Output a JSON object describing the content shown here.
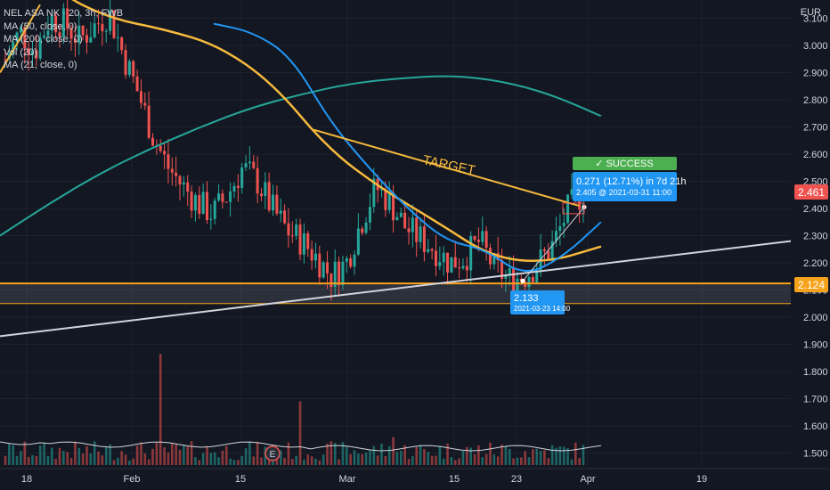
{
  "legend": {
    "symbol_line": "NEL ASA NK · 20, 3h, FWB",
    "ma50": "MA (50, close, 0)",
    "ma200": "MA (200, close, 0)",
    "vol": "Vol (20)",
    "ma21": "MA (21, close, 0)"
  },
  "currency": "EUR",
  "annotations": {
    "target_text": "TARGET",
    "success_label": "✓ SUCCESS",
    "gain_line1": "0.271 (12.71%) in 7d 21h",
    "gain_line2": "2.405 @ 2021-03-31  11:00",
    "low_value": "2.133",
    "low_date": "2021-03-23 14:00",
    "price_tag_current": "2.461",
    "price_tag_support": "2.124"
  },
  "colors": {
    "background": "#131722",
    "ma50": "#f5b93d",
    "ma200": "#26a69a",
    "ma21": "#2196f3",
    "up": "#26a69a",
    "down": "#ef5350",
    "support": "#f7a21b",
    "trendline": "#d1d4dc",
    "success": "#4caf50",
    "tooltip": "#2196f3"
  },
  "chart_data": {
    "type": "candlestick",
    "y_axis_ticks": [
      "3.100",
      "3.000",
      "2.900",
      "2.800",
      "2.700",
      "2.600",
      "2.500",
      "2.400",
      "2.300",
      "2.200",
      "2.100",
      "2.000",
      "1.900",
      "1.800",
      "1.700",
      "1.600",
      "1.500"
    ],
    "x_axis_ticks": [
      "18",
      "Feb",
      "15",
      "Mar",
      "15",
      "23",
      "Apr",
      "19"
    ],
    "ylim": [
      1.47,
      3.15
    ],
    "key_levels": {
      "support": 2.124,
      "current": 2.461,
      "low": 2.133,
      "target_entry": 2.405
    },
    "ma200": [
      2.3,
      2.42,
      2.53,
      2.62,
      2.7,
      2.77,
      2.82,
      2.86,
      2.88,
      2.89,
      2.87,
      2.82,
      2.74
    ],
    "ma50": [
      3.45,
      3.2,
      3.1,
      3.06,
      3.0,
      2.86,
      2.62,
      2.47,
      2.35,
      2.22,
      2.2,
      2.26
    ],
    "ma21": [
      3.08,
      3.05,
      2.96,
      2.72,
      2.55,
      2.4,
      2.28,
      2.25,
      2.15,
      2.22,
      2.35
    ],
    "candle_closes": [
      2.95,
      3.05,
      2.98,
      3.1,
      3.08,
      3.02,
      3.07,
      3.12,
      2.96,
      2.82,
      2.66,
      2.55,
      2.48,
      2.42,
      2.38,
      2.45,
      2.55,
      2.5,
      2.4,
      2.32,
      2.28,
      2.22,
      2.15,
      2.2,
      2.35,
      2.48,
      2.42,
      2.33,
      2.29,
      2.25,
      2.2,
      2.22,
      2.28,
      2.18,
      2.14,
      2.15,
      2.2,
      2.27,
      2.4,
      2.46
    ]
  }
}
